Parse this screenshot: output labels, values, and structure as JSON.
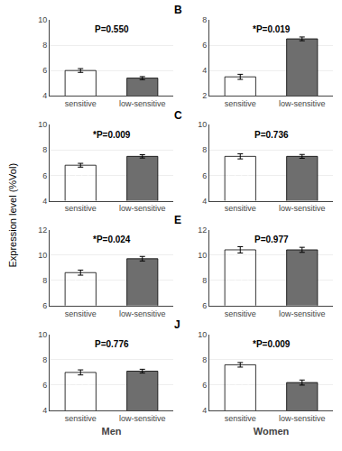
{
  "ylabel": "Expression level (%Vol)",
  "chart_data": [
    {
      "type": "bar",
      "annotations": [
        "P=0.550"
      ],
      "categories": [
        "sensitive",
        "low-sensitive"
      ],
      "values": [
        6.0,
        5.4
      ],
      "errors": [
        0.15,
        0.12
      ],
      "colors": [
        "#ffffff",
        "#6e6e6e"
      ],
      "ylim": [
        4,
        10
      ],
      "yticks": [
        4,
        6,
        8,
        10
      ],
      "grid": true
    },
    {
      "type": "bar",
      "title": "B",
      "annotations": [
        "*P=0.019"
      ],
      "categories": [
        "sensitive",
        "low-sensitive"
      ],
      "values": [
        3.5,
        6.5
      ],
      "errors": [
        0.2,
        0.15
      ],
      "colors": [
        "#ffffff",
        "#6e6e6e"
      ],
      "ylim": [
        2,
        8
      ],
      "yticks": [
        2,
        4,
        6,
        8
      ],
      "grid": true
    },
    {
      "type": "bar",
      "annotations": [
        "*P=0.009"
      ],
      "categories": [
        "sensitive",
        "low-sensitive"
      ],
      "values": [
        6.8,
        7.5
      ],
      "errors": [
        0.15,
        0.13
      ],
      "colors": [
        "#ffffff",
        "#6e6e6e"
      ],
      "ylim": [
        4,
        10
      ],
      "yticks": [
        4,
        6,
        8,
        10
      ],
      "grid": true
    },
    {
      "type": "bar",
      "title": "C",
      "annotations": [
        "P=0.736"
      ],
      "categories": [
        "sensitive",
        "low-sensitive"
      ],
      "values": [
        7.5,
        7.5
      ],
      "errors": [
        0.2,
        0.15
      ],
      "colors": [
        "#ffffff",
        "#6e6e6e"
      ],
      "ylim": [
        4,
        10
      ],
      "yticks": [
        4,
        6,
        8,
        10
      ],
      "grid": true
    },
    {
      "type": "bar",
      "annotations": [
        "*P=0.024"
      ],
      "categories": [
        "sensitive",
        "low-sensitive"
      ],
      "values": [
        8.6,
        9.7
      ],
      "errors": [
        0.2,
        0.18
      ],
      "colors": [
        "#ffffff",
        "#6e6e6e"
      ],
      "ylim": [
        6,
        12
      ],
      "yticks": [
        6,
        8,
        10,
        12
      ],
      "grid": true
    },
    {
      "type": "bar",
      "title": "E",
      "annotations": [
        "P=0.977"
      ],
      "categories": [
        "sensitive",
        "low-sensitive"
      ],
      "values": [
        10.4,
        10.4
      ],
      "errors": [
        0.25,
        0.2
      ],
      "colors": [
        "#ffffff",
        "#6e6e6e"
      ],
      "ylim": [
        6,
        12
      ],
      "yticks": [
        6,
        8,
        10,
        12
      ],
      "grid": true
    },
    {
      "type": "bar",
      "annotations": [
        "P=0.776"
      ],
      "xlabel": "Men",
      "categories": [
        "sensitive",
        "low-sensitive"
      ],
      "values": [
        7.0,
        7.1
      ],
      "errors": [
        0.2,
        0.15
      ],
      "colors": [
        "#ffffff",
        "#6e6e6e"
      ],
      "ylim": [
        4,
        10
      ],
      "yticks": [
        4,
        6,
        8,
        10
      ],
      "grid": true
    },
    {
      "type": "bar",
      "title": "J",
      "annotations": [
        "*P=0.009"
      ],
      "xlabel": "Women",
      "categories": [
        "sensitive",
        "low-sensitive"
      ],
      "values": [
        7.6,
        6.2
      ],
      "errors": [
        0.18,
        0.2
      ],
      "colors": [
        "#ffffff",
        "#6e6e6e"
      ],
      "ylim": [
        4,
        10
      ],
      "yticks": [
        4,
        6,
        8,
        10
      ],
      "grid": true
    }
  ]
}
